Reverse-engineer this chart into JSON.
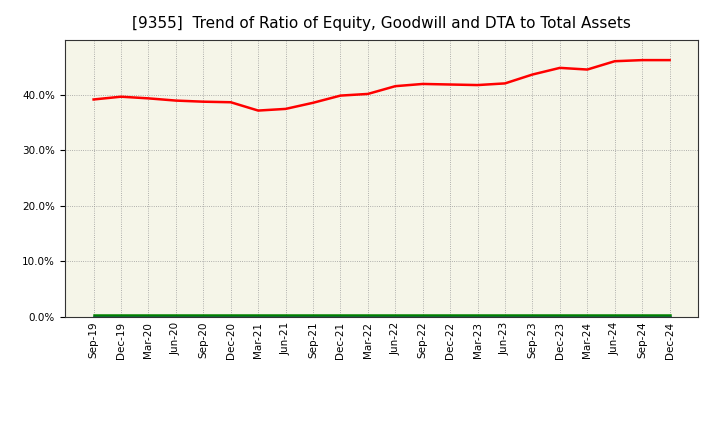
{
  "title": "[9355]  Trend of Ratio of Equity, Goodwill and DTA to Total Assets",
  "x_labels": [
    "Sep-19",
    "Dec-19",
    "Mar-20",
    "Jun-20",
    "Sep-20",
    "Dec-20",
    "Mar-21",
    "Jun-21",
    "Sep-21",
    "Dec-21",
    "Mar-22",
    "Jun-22",
    "Sep-22",
    "Dec-22",
    "Mar-23",
    "Jun-23",
    "Sep-23",
    "Dec-23",
    "Mar-24",
    "Jun-24",
    "Sep-24",
    "Dec-24"
  ],
  "equity": [
    0.392,
    0.397,
    0.394,
    0.39,
    0.388,
    0.387,
    0.372,
    0.375,
    0.386,
    0.399,
    0.402,
    0.416,
    0.42,
    0.419,
    0.418,
    0.421,
    0.437,
    0.449,
    0.446,
    0.461,
    0.463,
    0.463
  ],
  "goodwill": [
    0.0,
    0.0,
    0.0,
    0.0,
    0.0,
    0.0,
    0.0,
    0.0,
    0.0,
    0.0,
    0.0,
    0.0,
    0.0,
    0.0,
    0.0,
    0.0,
    0.0,
    0.0,
    0.0,
    0.0,
    0.0,
    0.0
  ],
  "dta": [
    0.004,
    0.004,
    0.004,
    0.004,
    0.004,
    0.004,
    0.004,
    0.004,
    0.004,
    0.004,
    0.004,
    0.004,
    0.004,
    0.004,
    0.004,
    0.004,
    0.004,
    0.004,
    0.004,
    0.004,
    0.004,
    0.004
  ],
  "equity_color": "#FF0000",
  "goodwill_color": "#0000CC",
  "dta_color": "#008000",
  "ylim": [
    0.0,
    0.5
  ],
  "yticks": [
    0.0,
    0.1,
    0.2,
    0.3,
    0.4
  ],
  "plot_bg_color": "#F5F5E8",
  "fig_bg_color": "#FFFFFF",
  "grid_color": "#999999",
  "title_fontsize": 11,
  "tick_fontsize": 7.5,
  "legend_fontsize": 9
}
